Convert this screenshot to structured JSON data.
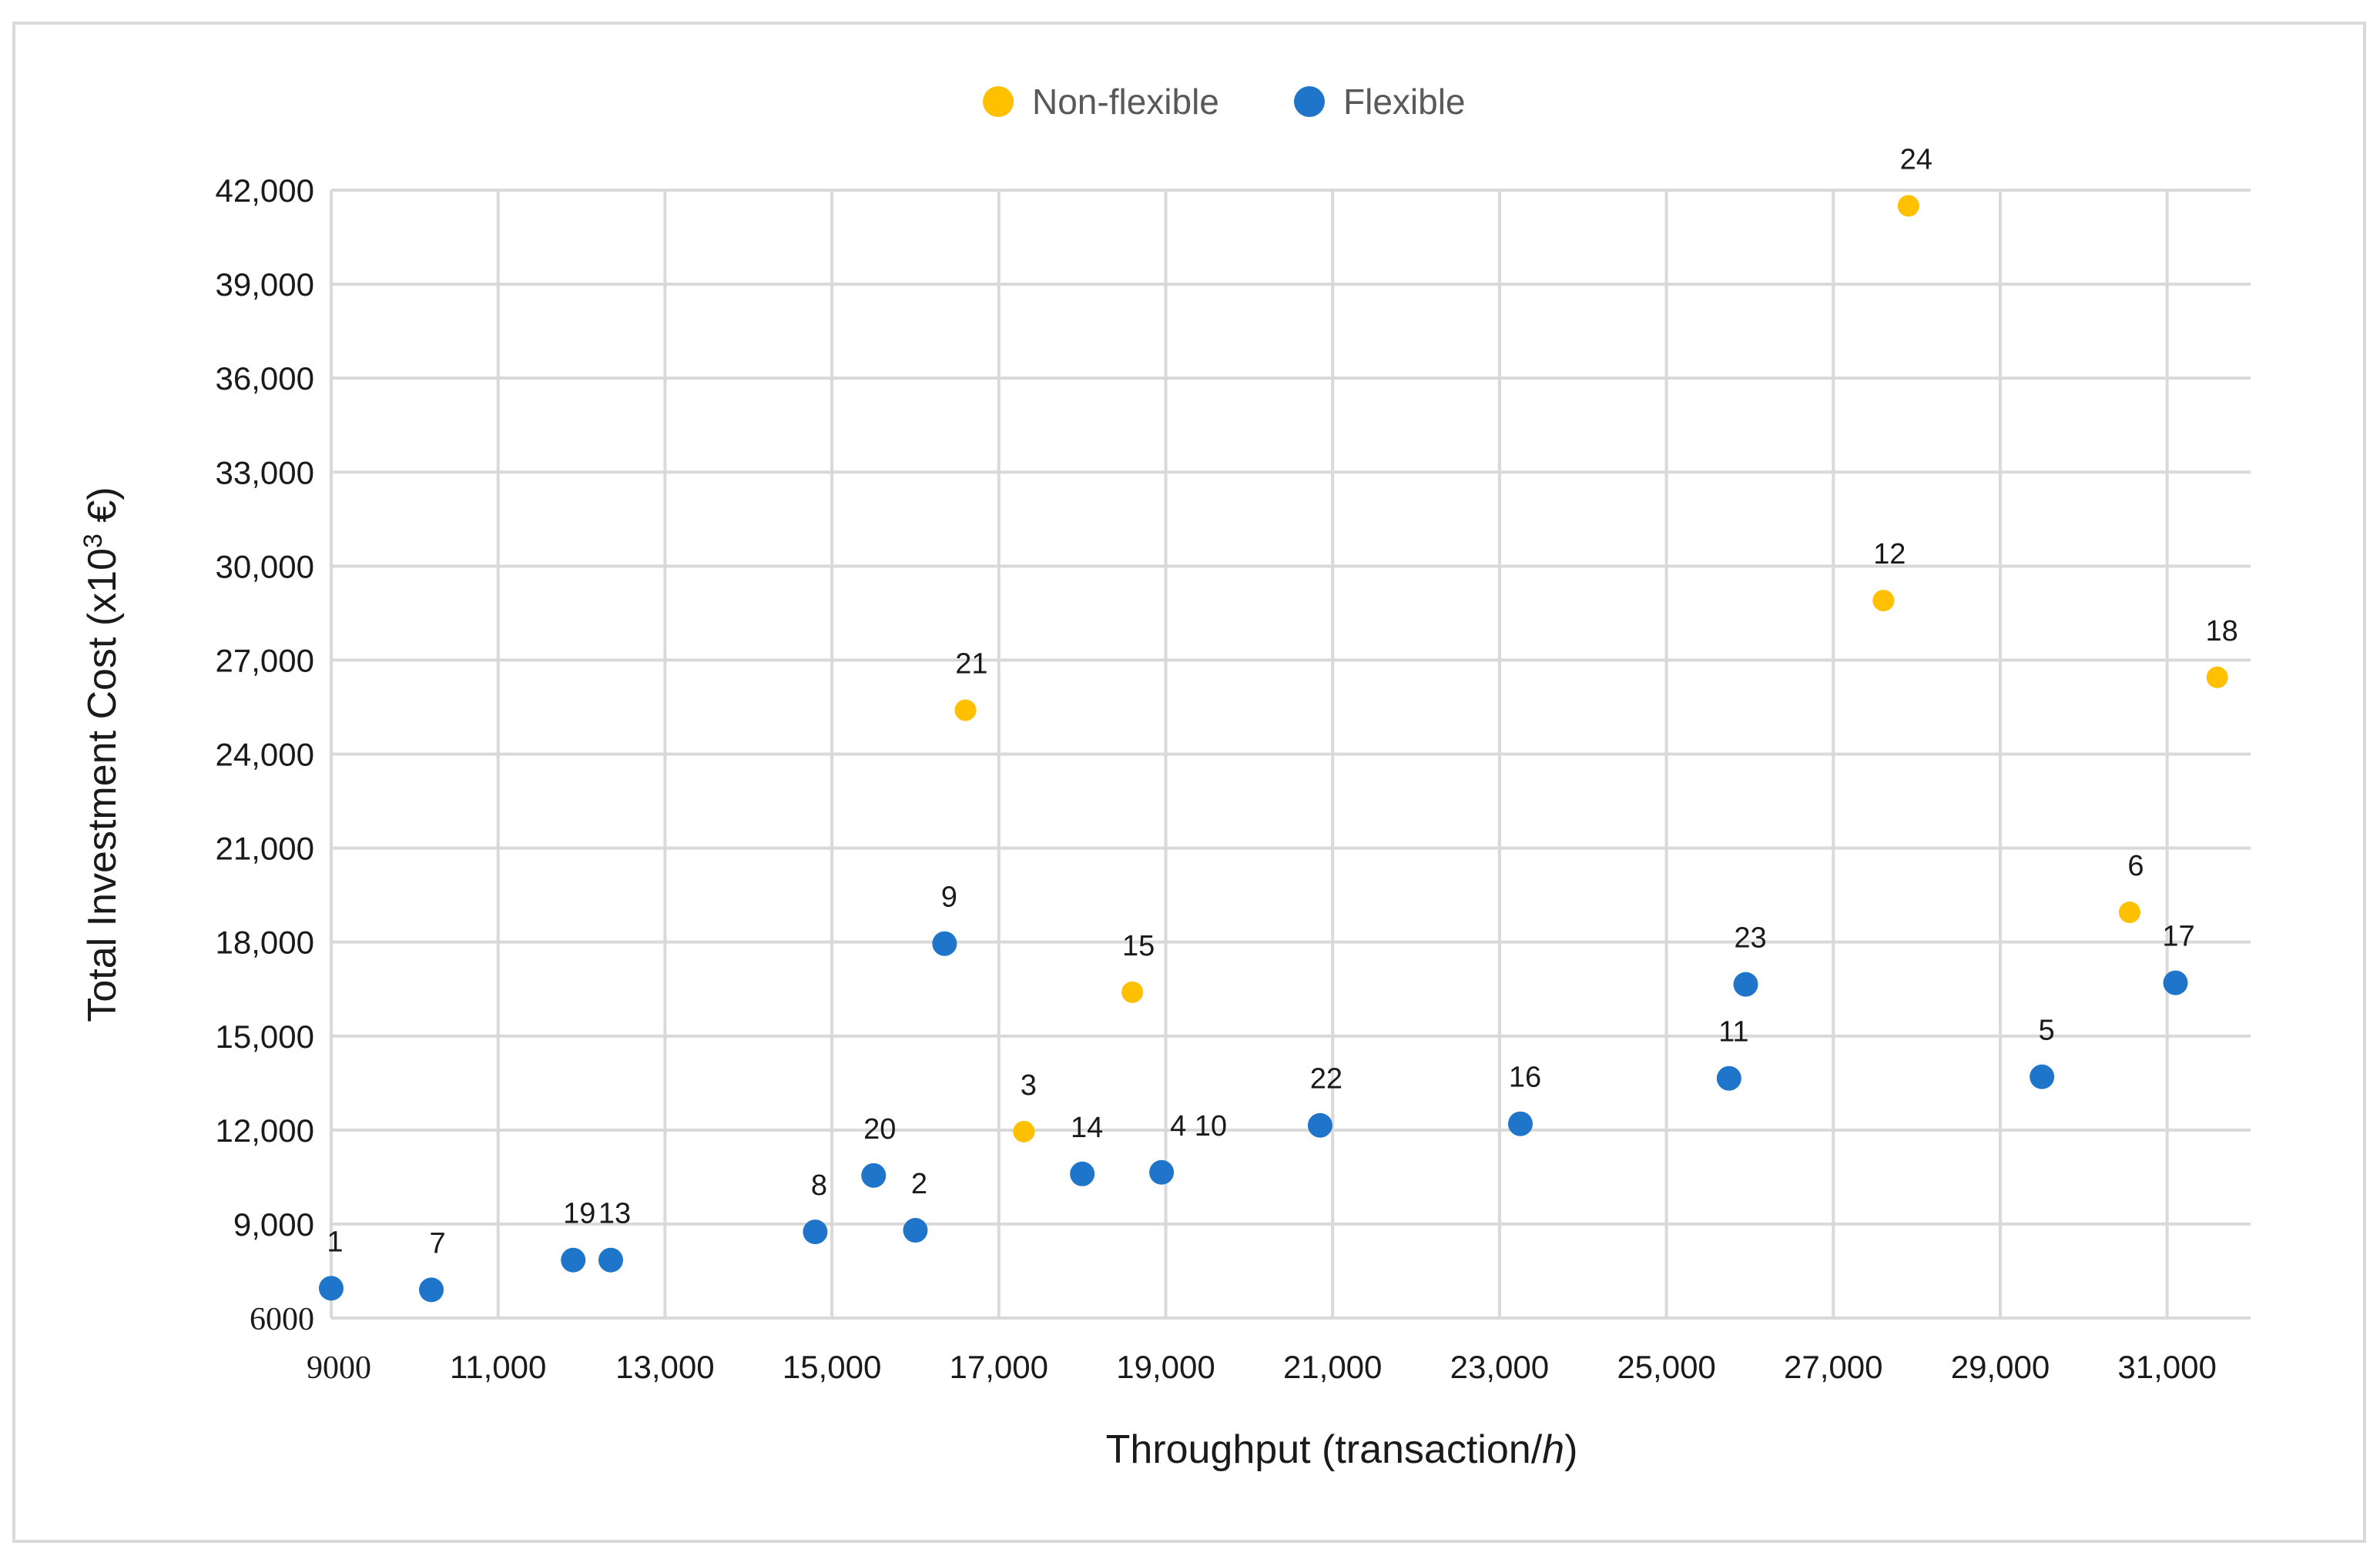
{
  "chart_data": {
    "type": "scatter",
    "title": "",
    "xlabel": "Throughput (transaction/",
    "xlabel_italic": "h",
    "xlabel_close": ")",
    "ylabel": "Total Investment Cost  (x10",
    "ylabel_sup": "3",
    "ylabel_unit": " €)",
    "xlim": [
      9000,
      32000
    ],
    "ylim": [
      6000,
      42000
    ],
    "x_ticks": [
      {
        "value": 9000,
        "label": "9000"
      },
      {
        "value": 11000,
        "label": "11,000"
      },
      {
        "value": 13000,
        "label": "13,000"
      },
      {
        "value": 15000,
        "label": "15,000"
      },
      {
        "value": 17000,
        "label": "17,000"
      },
      {
        "value": 19000,
        "label": "19,000"
      },
      {
        "value": 21000,
        "label": "21,000"
      },
      {
        "value": 23000,
        "label": "23,000"
      },
      {
        "value": 25000,
        "label": "25,000"
      },
      {
        "value": 27000,
        "label": "27,000"
      },
      {
        "value": 29000,
        "label": "29,000"
      },
      {
        "value": 31000,
        "label": "31,000"
      }
    ],
    "y_ticks": [
      {
        "value": 6000,
        "label": "6000"
      },
      {
        "value": 9000,
        "label": "9,000"
      },
      {
        "value": 12000,
        "label": "12,000"
      },
      {
        "value": 15000,
        "label": "15,000"
      },
      {
        "value": 18000,
        "label": "18,000"
      },
      {
        "value": 21000,
        "label": "21,000"
      },
      {
        "value": 24000,
        "label": "24,000"
      },
      {
        "value": 27000,
        "label": "27,000"
      },
      {
        "value": 30000,
        "label": "30,000"
      },
      {
        "value": 33000,
        "label": "33,000"
      },
      {
        "value": 36000,
        "label": "36,000"
      },
      {
        "value": 39000,
        "label": "39,000"
      },
      {
        "value": 42000,
        "label": "42,000"
      }
    ],
    "legend_position": "top-center",
    "grid": true,
    "series": [
      {
        "name": "Non-flexible",
        "color": "#FFC000",
        "points": [
          {
            "id": "21",
            "x": 16600,
            "y": 25400
          },
          {
            "id": "15",
            "x": 18600,
            "y": 16400
          },
          {
            "id": "3",
            "x": 17300,
            "y": 11950
          },
          {
            "id": "24",
            "x": 27900,
            "y": 41500
          },
          {
            "id": "12",
            "x": 27600,
            "y": 28900
          },
          {
            "id": "18",
            "x": 31600,
            "y": 26450
          },
          {
            "id": "6",
            "x": 30550,
            "y": 18950
          }
        ]
      },
      {
        "name": "Flexible",
        "color": "#1F75C9",
        "points": [
          {
            "id": "1",
            "x": 9000,
            "y": 6950
          },
          {
            "id": "7",
            "x": 10200,
            "y": 6900
          },
          {
            "id": "19",
            "x": 11900,
            "y": 7850
          },
          {
            "id": "13",
            "x": 12350,
            "y": 7850
          },
          {
            "id": "8",
            "x": 14800,
            "y": 8750
          },
          {
            "id": "20",
            "x": 15500,
            "y": 10550
          },
          {
            "id": "2",
            "x": 16000,
            "y": 8800
          },
          {
            "id": "9",
            "x": 16350,
            "y": 17950
          },
          {
            "id": "14",
            "x": 18000,
            "y": 10600
          },
          {
            "id": "4 10",
            "x": 18950,
            "y": 10650
          },
          {
            "id": "22",
            "x": 20850,
            "y": 12150
          },
          {
            "id": "16",
            "x": 23250,
            "y": 12200
          },
          {
            "id": "11",
            "x": 25750,
            "y": 13650
          },
          {
            "id": "23",
            "x": 25950,
            "y": 16650
          },
          {
            "id": "5",
            "x": 29500,
            "y": 13700
          },
          {
            "id": "17",
            "x": 31100,
            "y": 16700
          }
        ]
      }
    ]
  }
}
